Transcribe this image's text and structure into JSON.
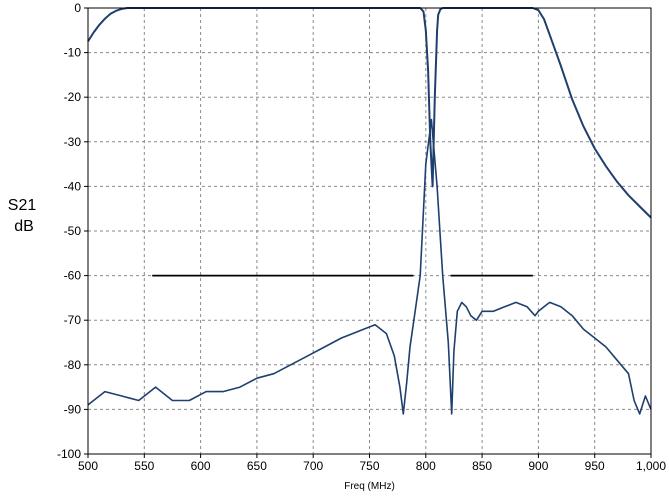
{
  "chart_data": {
    "type": "line",
    "title": "",
    "xlabel": "Freq (MHz)",
    "ylabel_lines": [
      "S21",
      "dB"
    ],
    "xlim": [
      500,
      1000
    ],
    "ylim": [
      -100,
      0
    ],
    "x_ticks": [
      500,
      550,
      600,
      650,
      700,
      750,
      800,
      850,
      900,
      950,
      1000
    ],
    "x_tick_labels": [
      "500",
      "550",
      "600",
      "650",
      "700",
      "750",
      "800",
      "850",
      "900",
      "950",
      "1,000"
    ],
    "y_ticks": [
      0,
      -10,
      -20,
      -30,
      -40,
      -50,
      -60,
      -70,
      -80,
      -90,
      -100
    ],
    "y_tick_labels": [
      "0",
      "-10",
      "-20",
      "-30",
      "-40",
      "-50",
      "-60",
      "-70",
      "-80",
      "-90",
      "-100"
    ],
    "grid": true,
    "series": [
      {
        "color": "#1f3f6e",
        "x": [
          500,
          505,
          510,
          515,
          520,
          525,
          530,
          535,
          540,
          545,
          550,
          600,
          700,
          790,
          795,
          798,
          800,
          802,
          804,
          806,
          808,
          810,
          811,
          813,
          815,
          817,
          819,
          822,
          830,
          860,
          890,
          895,
          900,
          905,
          910,
          920,
          930,
          940,
          950,
          960,
          970,
          980,
          990,
          1000
        ],
        "y": [
          -7.5,
          -5.5,
          -3.8,
          -2.4,
          -1.3,
          -0.6,
          -0.2,
          0,
          0,
          0,
          0,
          0,
          0,
          0,
          0,
          -0.8,
          -5,
          -14,
          -30,
          -40,
          -20,
          -5,
          -1.5,
          -0.3,
          0,
          0,
          0,
          0,
          0,
          0,
          0,
          0,
          -0.5,
          -2.5,
          -6,
          -13,
          -20.5,
          -26.5,
          -31.5,
          -35.5,
          -39,
          -42,
          -44.5,
          -47
        ]
      },
      {
        "color": "#1f3f6e",
        "x": [
          500,
          515,
          530,
          545,
          560,
          575,
          590,
          605,
          620,
          635,
          650,
          665,
          680,
          695,
          710,
          725,
          735,
          745,
          755,
          765,
          772,
          777,
          780,
          783,
          786,
          790,
          795,
          800,
          805,
          810,
          815,
          820,
          823,
          825,
          828,
          832,
          836,
          840,
          845,
          850,
          860,
          870,
          880,
          890,
          897,
          900,
          905,
          910,
          920,
          930,
          940,
          950,
          960,
          970,
          980,
          985,
          990,
          995,
          1000
        ],
        "y": [
          -89,
          -86,
          -87,
          -88,
          -85,
          -88,
          -88,
          -86,
          -86,
          -85,
          -83,
          -82,
          -80,
          -78,
          -76,
          -74,
          -73,
          -72,
          -71,
          -73,
          -78,
          -85,
          -91,
          -84,
          -76,
          -69,
          -60,
          -35,
          -25,
          -40,
          -60,
          -75,
          -91,
          -77,
          -68,
          -66,
          -67,
          -69,
          -70,
          -68,
          -68,
          -67,
          -66,
          -67,
          -69,
          -68,
          -67,
          -66,
          -67,
          -69,
          -72,
          -74,
          -76,
          -79,
          -82,
          -88,
          -91,
          -87,
          -90
        ]
      },
      {
        "color": "#000000",
        "x": [
          557,
          789
        ],
        "y": [
          -60,
          -60
        ]
      },
      {
        "color": "#000000",
        "x": [
          822,
          895
        ],
        "y": [
          -60,
          -60
        ]
      }
    ]
  }
}
